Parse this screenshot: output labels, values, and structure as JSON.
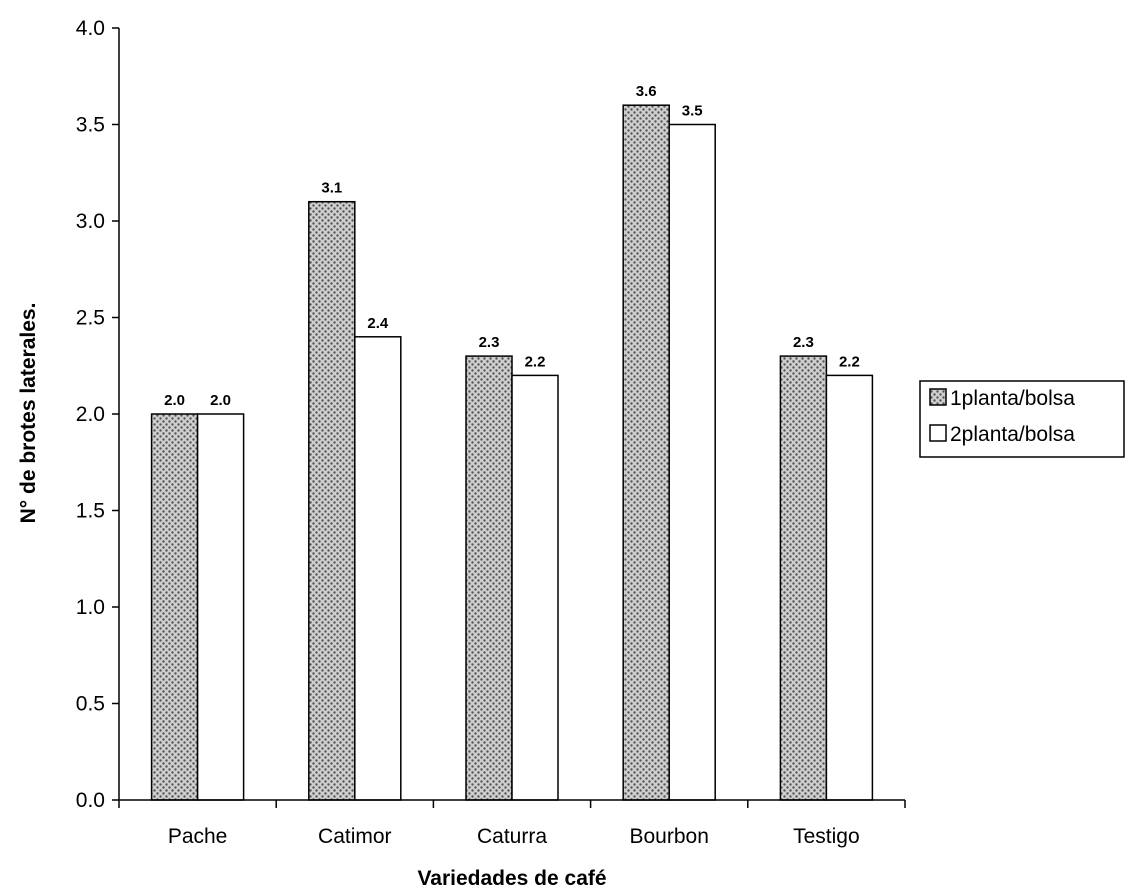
{
  "chart_data": {
    "type": "bar",
    "title": "",
    "xlabel": "Variedades de café",
    "ylabel": "N° de brotes laterales.",
    "categories": [
      "Pache",
      "Catimor",
      "Caturra",
      "Bourbon",
      "Testigo"
    ],
    "series": [
      {
        "name": "1planta/bolsa",
        "values": [
          2.0,
          3.1,
          2.3,
          3.6,
          2.3
        ],
        "pattern": "dotted-gray"
      },
      {
        "name": "2planta/bolsa",
        "values": [
          2.0,
          2.4,
          2.2,
          3.5,
          2.2
        ],
        "pattern": "white"
      }
    ],
    "data_labels": [
      [
        "2.0",
        "3.1",
        "2.3",
        "3.6",
        "2.3"
      ],
      [
        "2.0",
        "2.4",
        "2.2",
        "3.5",
        "2.2"
      ]
    ],
    "ylim": [
      0,
      4.0
    ],
    "yticks": [
      "0.0",
      "0.5",
      "1.0",
      "1.5",
      "2.0",
      "2.5",
      "3.0",
      "3.5",
      "4.0"
    ],
    "grid": false,
    "legend_position": "right"
  }
}
